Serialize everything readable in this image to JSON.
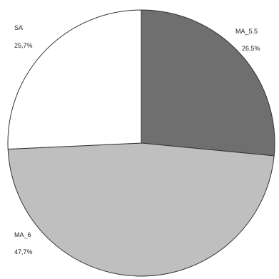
{
  "chart_data": {
    "type": "pie",
    "title": "",
    "slices": [
      {
        "label": "MA_5.5",
        "value_text": "26,5%",
        "value": 26.5,
        "color": "#6f6f6f"
      },
      {
        "label": "MA_6",
        "value_text": "47,7%",
        "value": 47.7,
        "color": "#bfbfbf"
      },
      {
        "label": "SA",
        "value_text": "25,7%",
        "value": 25.7,
        "color": "#ffffff"
      }
    ],
    "start_angle_deg": 0,
    "direction": "clockwise",
    "legend": "none",
    "edge_color": "#333333"
  }
}
